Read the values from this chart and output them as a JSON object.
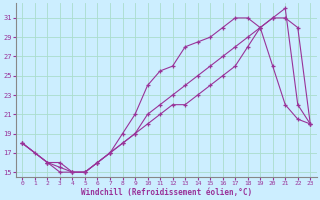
{
  "xlabel": "Windchill (Refroidissement éolien,°C)",
  "bg_color": "#cceeff",
  "grid_color": "#aaddcc",
  "line_color": "#993399",
  "xlim": [
    -0.5,
    23.5
  ],
  "ylim": [
    14.5,
    32.5
  ],
  "xticks": [
    0,
    1,
    2,
    3,
    4,
    5,
    6,
    7,
    8,
    9,
    10,
    11,
    12,
    13,
    14,
    15,
    16,
    17,
    18,
    19,
    20,
    21,
    22,
    23
  ],
  "yticks": [
    15,
    17,
    19,
    21,
    23,
    25,
    27,
    29,
    31
  ],
  "line1_x": [
    0,
    1,
    2,
    3,
    4,
    5,
    6,
    7,
    8,
    9,
    10,
    11,
    12,
    13,
    14,
    15,
    16,
    17,
    18,
    19,
    20,
    21,
    22,
    23
  ],
  "line1_y": [
    18,
    17,
    16,
    15.5,
    15,
    15,
    16,
    17,
    18,
    19,
    21,
    22,
    23,
    24,
    25,
    26,
    27,
    28,
    29,
    30,
    31,
    31,
    30,
    20
  ],
  "line2_x": [
    0,
    2,
    3,
    4,
    5,
    6,
    7,
    8,
    9,
    10,
    11,
    12,
    13,
    14,
    15,
    16,
    17,
    18,
    19,
    20,
    21,
    22,
    23
  ],
  "line2_y": [
    18,
    16,
    15,
    15,
    15,
    16,
    17,
    19,
    21,
    24,
    25.5,
    26,
    28,
    28.5,
    29,
    30,
    31,
    31,
    30,
    26,
    22,
    20.5,
    20
  ],
  "line3_x": [
    0,
    2,
    3,
    4,
    5,
    6,
    7,
    8,
    9,
    10,
    11,
    12,
    13,
    14,
    15,
    16,
    17,
    18,
    19,
    20,
    21,
    22,
    23
  ],
  "line3_y": [
    18,
    16,
    16,
    15,
    15,
    16,
    17,
    18,
    19,
    20,
    21,
    22,
    22,
    23,
    24,
    25,
    26,
    28,
    30,
    31,
    32,
    22,
    20
  ]
}
